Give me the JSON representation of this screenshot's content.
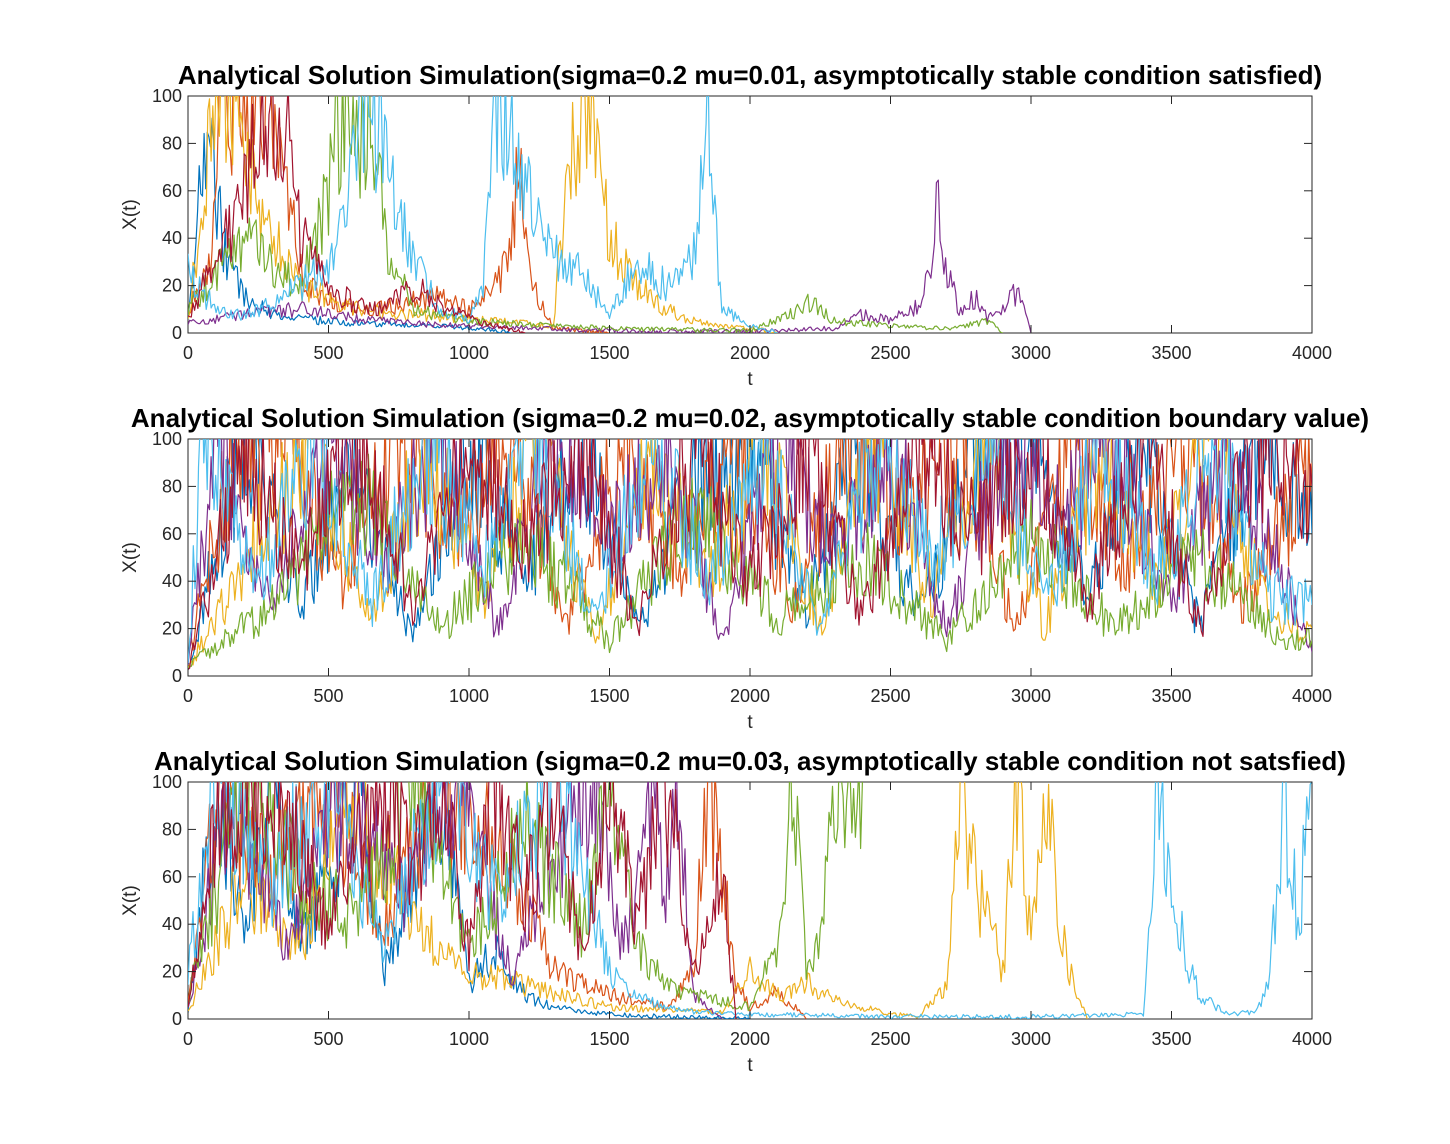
{
  "chart_data": [
    {
      "type": "line",
      "title": "Analytical Solution Simulation(sigma=0.2 mu=0.01, asymptotically stable condition satisfied)",
      "xlabel": "t",
      "ylabel": "X(t)",
      "xlim": [
        0,
        4000
      ],
      "ylim": [
        0,
        100
      ],
      "xticks": [
        "0",
        "500",
        "1000",
        "1500",
        "2000",
        "2500",
        "3000",
        "3500",
        "4000"
      ],
      "yticks": [
        "0",
        "20",
        "40",
        "60",
        "80",
        "100"
      ],
      "grid": false,
      "legend": "none",
      "series": [
        {
          "color": "#0072BD",
          "x": [
            0,
            40,
            80,
            120,
            200,
            300,
            400,
            500,
            600,
            700,
            800,
            900,
            1000,
            1100,
            1150
          ],
          "y": [
            5,
            60,
            88,
            40,
            15,
            8,
            6,
            5,
            4,
            4,
            3,
            3,
            2,
            1,
            0
          ]
        },
        {
          "color": "#D95319",
          "x": [
            0,
            80,
            120,
            180,
            260,
            340,
            420,
            520,
            640,
            760,
            880,
            1000,
            1100,
            1150,
            1180,
            1220,
            1300,
            1400,
            1500
          ],
          "y": [
            8,
            30,
            100,
            95,
            100,
            60,
            20,
            12,
            10,
            12,
            15,
            10,
            20,
            40,
            70,
            20,
            2,
            1,
            0
          ]
        },
        {
          "color": "#EDB120",
          "x": [
            0,
            100,
            200,
            300,
            400,
            600,
            800,
            1000,
            1200,
            1300,
            1350,
            1400,
            1450,
            1500,
            1600,
            1700,
            1800,
            1900,
            2000,
            2100
          ],
          "y": [
            6,
            100,
            80,
            40,
            20,
            10,
            8,
            6,
            4,
            3,
            70,
            100,
            80,
            40,
            20,
            10,
            5,
            3,
            2,
            0
          ]
        },
        {
          "color": "#7E2F8E",
          "x": [
            0,
            200,
            400,
            600,
            800,
            1000,
            1500,
            2000,
            2300,
            2400,
            2500,
            2600,
            2650,
            2670,
            2690,
            2750,
            2800,
            2850,
            2900,
            2950,
            3000
          ],
          "y": [
            4,
            8,
            10,
            6,
            4,
            3,
            1,
            0.5,
            2,
            8,
            5,
            12,
            25,
            68,
            30,
            8,
            15,
            6,
            10,
            18,
            0
          ]
        },
        {
          "color": "#77AC30",
          "x": [
            0,
            200,
            400,
            500,
            550,
            600,
            650,
            700,
            800,
            1000,
            1500,
            2000,
            2150,
            2200,
            2300,
            2500,
            2700,
            2850,
            2900
          ],
          "y": [
            10,
            40,
            20,
            60,
            100,
            80,
            100,
            40,
            10,
            5,
            2,
            1,
            8,
            14,
            5,
            3,
            2,
            5,
            0
          ]
        },
        {
          "color": "#4DBEEE",
          "x": [
            0,
            100,
            200,
            300,
            400,
            500,
            600,
            650,
            700,
            800,
            900,
            1000,
            1050,
            1100,
            1200,
            1300,
            1400,
            1500,
            1600,
            1700,
            1800,
            1850,
            1900,
            2000,
            2100
          ],
          "y": [
            25,
            10,
            8,
            12,
            20,
            30,
            80,
            100,
            70,
            30,
            10,
            5,
            20,
            100,
            60,
            35,
            25,
            8,
            30,
            20,
            35,
            92,
            10,
            3,
            0
          ]
        },
        {
          "color": "#A2142F",
          "x": [
            0,
            100,
            200,
            300,
            350,
            400,
            500,
            600,
            700,
            800,
            900,
            1000,
            1100,
            1200
          ],
          "y": [
            6,
            30,
            60,
            100,
            90,
            40,
            20,
            12,
            10,
            20,
            12,
            6,
            3,
            0
          ]
        }
      ]
    },
    {
      "type": "line",
      "title": "Analytical Solution Simulation (sigma=0.2 mu=0.02, asymptotically stable condition boundary value)",
      "xlabel": "t",
      "ylabel": "X(t)",
      "xlim": [
        0,
        4000
      ],
      "ylim": [
        0,
        100
      ],
      "xticks": [
        "0",
        "500",
        "1000",
        "1500",
        "2000",
        "2500",
        "3000",
        "3500",
        "4000"
      ],
      "yticks": [
        "0",
        "20",
        "40",
        "60",
        "80",
        "100"
      ],
      "grid": false,
      "legend": "none",
      "series": [
        {
          "color": "#0072BD",
          "x": [
            0,
            200,
            400,
            600,
            800,
            1000,
            1200,
            1400,
            1600,
            1800,
            2000,
            2200,
            2400,
            2600,
            2800,
            3000,
            3200,
            3400,
            3600,
            3800,
            4000
          ],
          "y": [
            4,
            100,
            30,
            90,
            15,
            100,
            40,
            100,
            20,
            80,
            100,
            30,
            100,
            25,
            90,
            100,
            35,
            100,
            20,
            100,
            60
          ]
        },
        {
          "color": "#D95319",
          "x": [
            0,
            150,
            350,
            550,
            750,
            950,
            1150,
            1350,
            1550,
            1750,
            1950,
            2150,
            2350,
            2550,
            2750,
            2950,
            3150,
            3350,
            3550,
            3750,
            4000
          ],
          "y": [
            6,
            90,
            100,
            40,
            100,
            60,
            100,
            20,
            100,
            50,
            100,
            30,
            100,
            70,
            100,
            20,
            100,
            45,
            100,
            30,
            90
          ]
        },
        {
          "color": "#EDB120",
          "x": [
            0,
            250,
            450,
            650,
            850,
            1050,
            1250,
            1450,
            1650,
            1850,
            2050,
            2250,
            2450,
            2650,
            2850,
            3050,
            3250,
            3450,
            3650,
            3850,
            4000
          ],
          "y": [
            3,
            60,
            100,
            20,
            100,
            35,
            100,
            15,
            100,
            40,
            100,
            20,
            100,
            35,
            100,
            20,
            100,
            40,
            100,
            25,
            20
          ]
        },
        {
          "color": "#7E2F8E",
          "x": [
            0,
            100,
            300,
            500,
            700,
            900,
            1100,
            1300,
            1500,
            1700,
            1900,
            2100,
            2300,
            2500,
            2700,
            2900,
            3100,
            3300,
            3500,
            3700,
            4000
          ],
          "y": [
            5,
            100,
            25,
            100,
            50,
            100,
            20,
            100,
            60,
            100,
            15,
            100,
            50,
            100,
            20,
            100,
            70,
            100,
            30,
            100,
            10
          ]
        },
        {
          "color": "#77AC30",
          "x": [
            0,
            300,
            600,
            900,
            1200,
            1500,
            1800,
            2100,
            2400,
            2700,
            3000,
            3300,
            3600,
            3900,
            4000
          ],
          "y": [
            4,
            30,
            80,
            20,
            60,
            15,
            70,
            25,
            50,
            15,
            60,
            20,
            50,
            15,
            15
          ]
        },
        {
          "color": "#4DBEEE",
          "x": [
            0,
            50,
            250,
            450,
            650,
            850,
            1050,
            1250,
            1450,
            1650,
            1850,
            2050,
            2250,
            2450,
            2650,
            2850,
            3050,
            3250,
            3450,
            3650,
            3850,
            4000
          ],
          "y": [
            8,
            100,
            40,
            100,
            30,
            100,
            50,
            100,
            25,
            100,
            40,
            100,
            20,
            100,
            50,
            100,
            30,
            100,
            45,
            100,
            35,
            30
          ]
        },
        {
          "color": "#A2142F",
          "x": [
            0,
            200,
            400,
            600,
            800,
            1000,
            1200,
            1400,
            1600,
            1800,
            2000,
            2200,
            2400,
            2600,
            2800,
            3000,
            3200,
            3400,
            3600,
            3800,
            4000
          ],
          "y": [
            2,
            100,
            45,
            100,
            30,
            100,
            55,
            100,
            20,
            100,
            40,
            100,
            25,
            100,
            60,
            100,
            30,
            100,
            20,
            100,
            80
          ]
        }
      ]
    },
    {
      "type": "line",
      "title": "Analytical Solution Simulation (sigma=0.2 mu=0.03, asymptotically stable condition not satsfied)",
      "xlabel": "t",
      "ylabel": "X(t)",
      "xlim": [
        0,
        4000
      ],
      "ylim": [
        0,
        100
      ],
      "xticks": [
        "0",
        "500",
        "1000",
        "1500",
        "2000",
        "2500",
        "3000",
        "3500",
        "4000"
      ],
      "yticks": [
        "0",
        "20",
        "40",
        "60",
        "80",
        "100"
      ],
      "grid": false,
      "legend": "none",
      "series": [
        {
          "color": "#0072BD",
          "x": [
            0,
            100,
            200,
            300,
            400,
            500,
            600,
            700,
            800,
            900,
            1000,
            1100,
            1200,
            1300,
            1400,
            1500,
            1700,
            2000
          ],
          "y": [
            4,
            100,
            40,
            100,
            30,
            60,
            100,
            20,
            50,
            100,
            15,
            30,
            10,
            5,
            3,
            2,
            1,
            0
          ]
        },
        {
          "color": "#D95319",
          "x": [
            0,
            100,
            300,
            500,
            700,
            900,
            1100,
            1300,
            1500,
            1700,
            1800,
            1850,
            1900,
            1950,
            2000,
            2050,
            2100,
            2150,
            2200
          ],
          "y": [
            6,
            100,
            60,
            100,
            40,
            100,
            80,
            20,
            10,
            5,
            20,
            100,
            60,
            15,
            5,
            8,
            12,
            6,
            0
          ]
        },
        {
          "color": "#EDB120",
          "x": [
            0,
            200,
            400,
            600,
            800,
            1000,
            1500,
            1900,
            2000,
            2100,
            2200,
            2300,
            2400,
            2500,
            2600,
            2700,
            2750,
            2800,
            2850,
            2900,
            2950,
            3000,
            3050,
            3100,
            3150,
            3200
          ],
          "y": [
            3,
            60,
            30,
            100,
            40,
            20,
            5,
            3,
            20,
            10,
            15,
            8,
            5,
            2,
            1,
            15,
            100,
            60,
            40,
            20,
            100,
            30,
            100,
            40,
            15,
            0
          ]
        },
        {
          "color": "#7E2F8E",
          "x": [
            0,
            150,
            350,
            550,
            750,
            950,
            1150,
            1350,
            1450,
            1550,
            1650,
            1700,
            1750,
            1800,
            1850,
            1900
          ],
          "y": [
            5,
            100,
            30,
            100,
            50,
            100,
            20,
            80,
            100,
            30,
            100,
            50,
            100,
            10,
            5,
            0
          ]
        },
        {
          "color": "#77AC30",
          "x": [
            0,
            200,
            400,
            600,
            800,
            1000,
            1200,
            1400,
            1500,
            1550,
            1600,
            1700,
            1800,
            2000,
            2100,
            2150,
            2200,
            2250,
            2300,
            2350,
            2400
          ],
          "y": [
            8,
            100,
            60,
            40,
            100,
            30,
            80,
            40,
            100,
            60,
            30,
            15,
            10,
            5,
            30,
            100,
            20,
            30,
            100,
            80,
            100
          ]
        },
        {
          "color": "#4DBEEE",
          "x": [
            0,
            100,
            300,
            500,
            700,
            900,
            1100,
            1300,
            1500,
            1600,
            1700,
            1800,
            2000,
            2500,
            3000,
            3400,
            3450,
            3500,
            3550,
            3600,
            3700,
            3800,
            3850,
            3900,
            3950,
            4000
          ],
          "y": [
            20,
            100,
            60,
            100,
            30,
            100,
            50,
            100,
            20,
            10,
            5,
            3,
            2,
            1,
            1,
            2,
            100,
            60,
            25,
            10,
            2,
            3,
            15,
            100,
            40,
            100
          ]
        },
        {
          "color": "#A2142F",
          "x": [
            0,
            100,
            300,
            500,
            700,
            800,
            900,
            1000,
            1100,
            1200,
            1300,
            1400,
            1500,
            1600,
            1700,
            1800,
            1900,
            1950
          ],
          "y": [
            4,
            80,
            100,
            40,
            100,
            60,
            100,
            30,
            100,
            50,
            100,
            25,
            100,
            40,
            100,
            20,
            60,
            0
          ]
        }
      ]
    }
  ]
}
